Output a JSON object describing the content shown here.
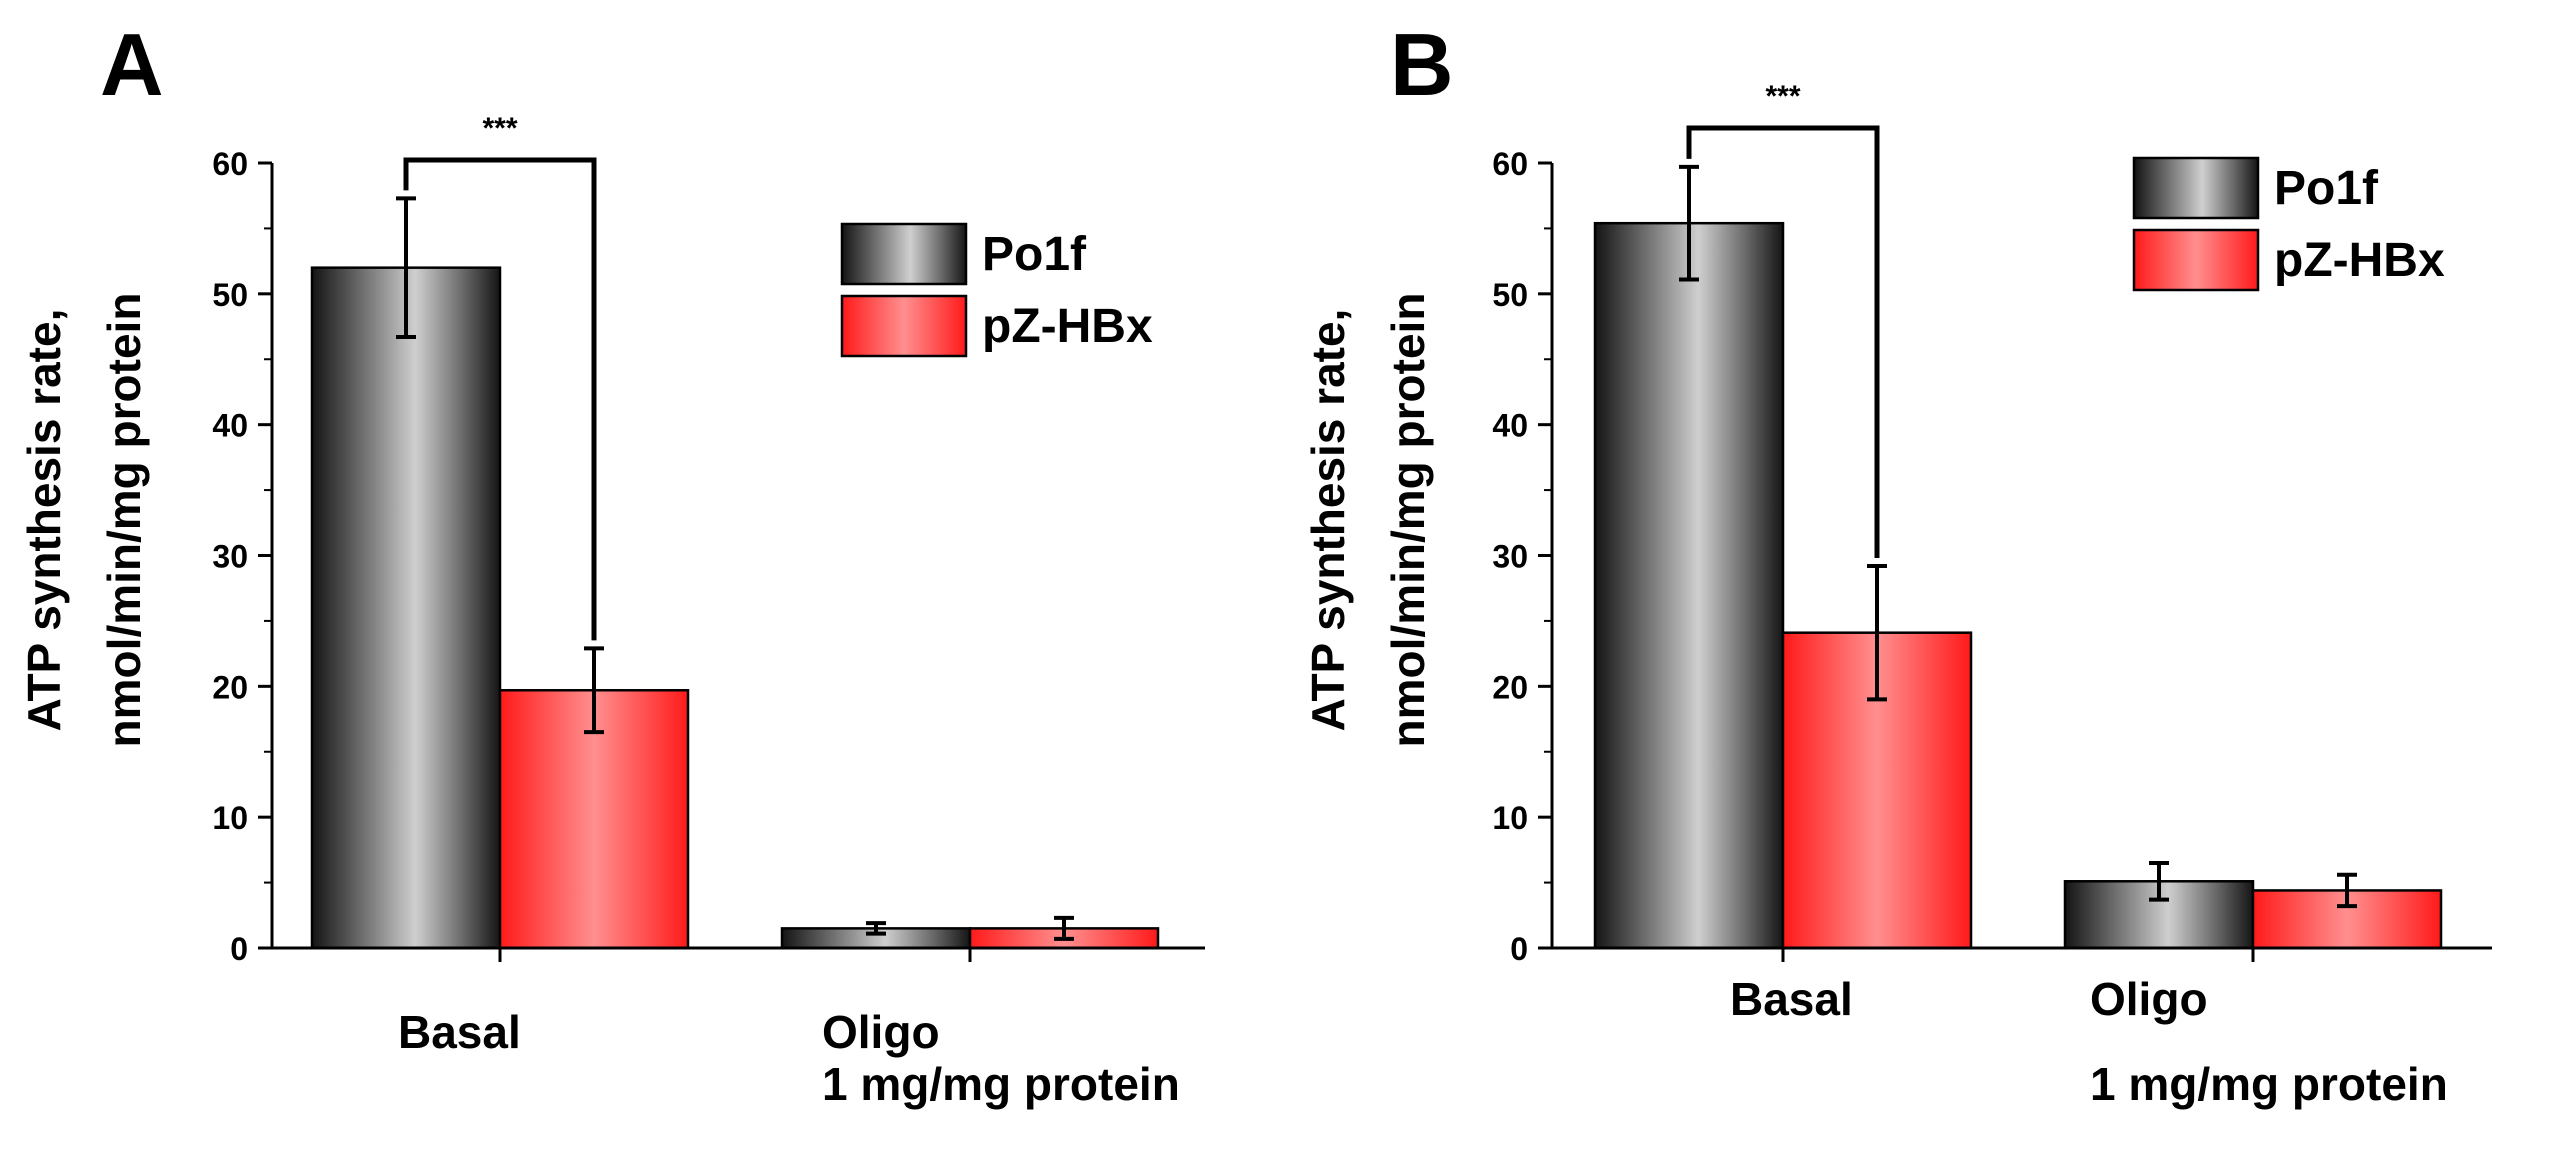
{
  "chart_data": [
    {
      "type": "bar",
      "panel_label": "A",
      "categories": [
        "Basal",
        "Oligo"
      ],
      "category_sublabels": [
        "",
        "1 mg/mg protein"
      ],
      "ylabel_lines": [
        "ATP synthesis rate,",
        "nmol/min/mg protein"
      ],
      "ylim": [
        0,
        60
      ],
      "yticks": [
        0,
        10,
        20,
        30,
        40,
        50,
        60
      ],
      "series": [
        {
          "name": "Po1f",
          "values": [
            52.0,
            1.5
          ],
          "errors": [
            5.3,
            0.4
          ]
        },
        {
          "name": "pZ-HBx",
          "values": [
            19.7,
            1.5
          ],
          "errors": [
            3.2,
            0.8
          ]
        }
      ],
      "significance": {
        "label": "***",
        "category_index": 0
      },
      "legend_position": "top-right",
      "grid": false
    },
    {
      "type": "bar",
      "panel_label": "B",
      "categories": [
        "Basal",
        "Oligo"
      ],
      "category_sublabels": [
        "",
        "1 mg/mg protein"
      ],
      "ylabel_lines": [
        "ATP synthesis rate,",
        "nmol/min/mg protein"
      ],
      "ylim": [
        0,
        60
      ],
      "yticks": [
        0,
        10,
        20,
        30,
        40,
        50,
        60
      ],
      "series": [
        {
          "name": "Po1f",
          "values": [
            55.4,
            5.1
          ],
          "errors": [
            4.3,
            1.4
          ]
        },
        {
          "name": "pZ-HBx",
          "values": [
            24.1,
            4.4
          ],
          "errors": [
            5.1,
            1.2
          ]
        }
      ],
      "significance": {
        "label": "***",
        "category_index": 0
      },
      "legend_position": "top-right",
      "grid": false
    }
  ],
  "colors": {
    "series_dark": "#1a1a1a",
    "series_light_gray": "#c8c8c8",
    "series_red": "#ff2020",
    "series_red_light": "#ff9a9a",
    "axis": "#000000"
  }
}
